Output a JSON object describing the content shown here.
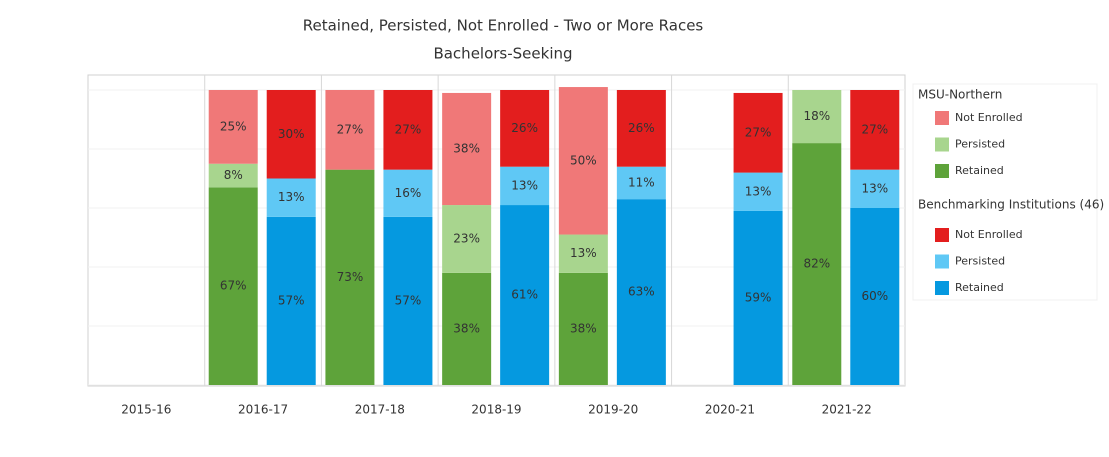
{
  "chart_data": {
    "type": "stacked_bar",
    "title": "Retained, Persisted, Not Enrolled - Two or More Races",
    "subtitle": "Bachelors-Seeking",
    "categories": [
      "2015-16",
      "2016-17",
      "2017-18",
      "2018-19",
      "2019-20",
      "2020-21",
      "2021-22"
    ],
    "legend_groups": [
      "MSU-Northern",
      "Benchmarking Institutions (46)"
    ],
    "series": [
      {
        "name": "Retained",
        "group": 0,
        "color": "#5ea33a",
        "values": [
          null,
          67,
          73,
          38,
          38,
          null,
          82
        ],
        "value_labels": [
          null,
          "67%",
          "73%",
          "38%",
          "38%",
          null,
          "82%"
        ]
      },
      {
        "name": "Persisted",
        "group": 0,
        "color": "#a8d58e",
        "values": [
          null,
          8,
          null,
          23,
          13,
          null,
          18
        ],
        "value_labels": [
          null,
          "8%",
          null,
          "23%",
          "13%",
          null,
          "18%"
        ]
      },
      {
        "name": "Not Enrolled",
        "group": 0,
        "color": "#f07878",
        "values": [
          null,
          25,
          27,
          38,
          50,
          null,
          null
        ],
        "value_labels": [
          null,
          "25%",
          "27%",
          "38%",
          "50%",
          null,
          null
        ]
      },
      {
        "name": "Retained",
        "group": 1,
        "color": "#0599e0",
        "values": [
          null,
          57,
          57,
          61,
          63,
          59,
          60
        ],
        "value_labels": [
          null,
          "57%",
          "57%",
          "61%",
          "63%",
          "59%",
          "60%"
        ]
      },
      {
        "name": "Persisted",
        "group": 1,
        "color": "#5fc8f5",
        "values": [
          null,
          13,
          16,
          13,
          11,
          13,
          13
        ],
        "value_labels": [
          null,
          "13%",
          "16%",
          "13%",
          "11%",
          "13%",
          "13%"
        ]
      },
      {
        "name": "Not Enrolled",
        "group": 1,
        "color": "#e31e1e",
        "values": [
          null,
          30,
          27,
          26,
          26,
          27,
          27
        ],
        "value_labels": [
          null,
          "30%",
          "27%",
          "26%",
          "26%",
          "27%",
          "27%"
        ]
      }
    ],
    "ylim": [
      0,
      100
    ],
    "yticks": [
      0,
      20,
      40,
      60,
      80,
      100
    ],
    "grid": true,
    "legend": "right"
  }
}
